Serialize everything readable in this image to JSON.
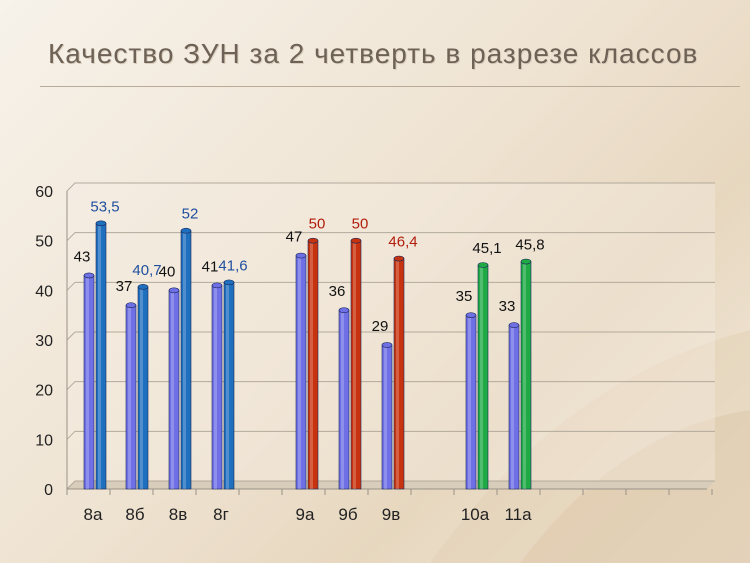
{
  "title": "Качество ЗУН за 2 четверть в разрезе классов",
  "colors": {
    "blue_light": "#6f6fe6",
    "blue_dark": "#1f6fbf",
    "red": "#c8330f",
    "green": "#1faa45",
    "label_blue": "#1f4f9f",
    "label_red": "#b01d0a",
    "label_black": "#111111"
  },
  "chart_data": {
    "type": "bar",
    "title": "",
    "xlabel": "",
    "ylabel": "",
    "ylim": [
      0,
      60
    ],
    "yticks": [
      0,
      10,
      20,
      30,
      40,
      50,
      60
    ],
    "grid": true,
    "legend": "none",
    "categories": [
      "8а",
      "8б",
      "8в",
      "8г",
      "9а",
      "9б",
      "9в",
      "10а",
      "11а"
    ],
    "series": [
      {
        "values": [
          43,
          37,
          40,
          41,
          47,
          36,
          29,
          35,
          33
        ],
        "labels": [
          "43",
          "37",
          "40",
          "41",
          "47",
          "36",
          "29",
          "35",
          "33"
        ]
      },
      {
        "values": [
          53.5,
          40.7,
          52,
          41.6,
          50,
          50,
          46.4,
          45.1,
          45.8
        ],
        "labels": [
          "53,5",
          "40,7",
          "52",
          "41,6",
          "50",
          "50",
          "46,4",
          "45,1",
          "45,8"
        ]
      }
    ]
  }
}
